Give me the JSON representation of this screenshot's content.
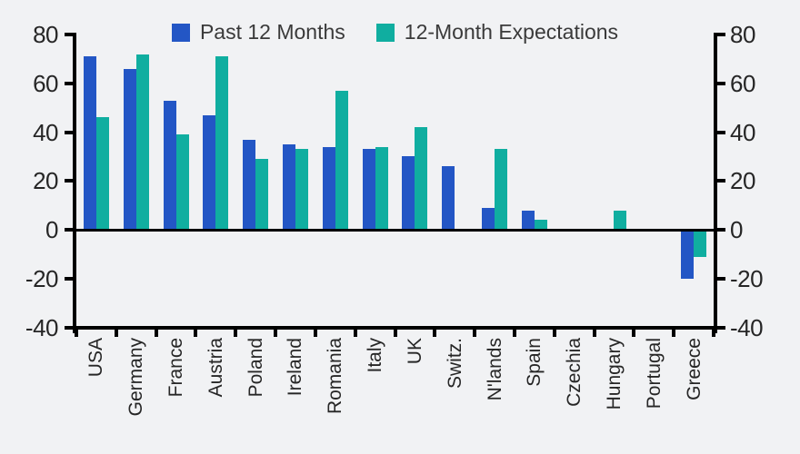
{
  "chart_data": {
    "type": "bar",
    "title": "",
    "xlabel": "",
    "ylabel": "",
    "categories": [
      "USA",
      "Germany",
      "France",
      "Austria",
      "Poland",
      "Ireland",
      "Romania",
      "Italy",
      "UK",
      "Switz.",
      "N'lands",
      "Spain",
      "Czechia",
      "Hungary",
      "Portugal",
      "Greece"
    ],
    "series": [
      {
        "name": "Past 12 Months",
        "color": "#2356c5",
        "values": [
          71,
          66,
          53,
          47,
          37,
          35,
          34,
          33,
          30,
          26,
          9,
          8,
          0,
          0,
          0,
          -20
        ]
      },
      {
        "name": "12-Month Expectations",
        "color": "#10aea0",
        "values": [
          46,
          72,
          39,
          71,
          29,
          33,
          57,
          34,
          42,
          0,
          33,
          4,
          0,
          8,
          0,
          -11
        ]
      }
    ],
    "ylim": [
      -40,
      80
    ],
    "yticks": [
      80,
      60,
      40,
      20,
      0,
      -20,
      -40
    ],
    "y_axis_sides": "both",
    "legend_position": "top-center",
    "grid": false,
    "background_color": "#f1f2f4",
    "axis_color": "#000000",
    "text_color": "#262626"
  }
}
